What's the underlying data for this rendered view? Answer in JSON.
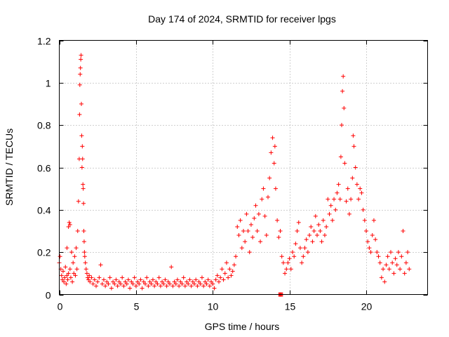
{
  "chart_data": {
    "type": "scatter",
    "title": "Day 174 of 2024, SRMTID for receiver lpgs",
    "xlabel": "GPS time / hours",
    "ylabel": "SRMTID / TECUs",
    "xlim": [
      0,
      24
    ],
    "ylim": [
      0,
      1.2
    ],
    "xticks": [
      0,
      5,
      10,
      15,
      20
    ],
    "xtick_labels": [
      "0",
      "5",
      "10",
      "15",
      "20"
    ],
    "yticks": [
      0,
      0.2,
      0.4,
      0.6,
      0.8,
      1.0,
      1.2
    ],
    "ytick_labels": [
      "0",
      "0.2",
      "0.4",
      "0.6",
      "0.8",
      "1",
      "1.2"
    ],
    "grid": true,
    "marker": "plus",
    "color": "#ff0000",
    "series": [
      {
        "name": "SRMTID",
        "points": [
          [
            0.0,
            0.15
          ],
          [
            0.05,
            0.18
          ],
          [
            0.1,
            0.12
          ],
          [
            0.15,
            0.09
          ],
          [
            0.2,
            0.07
          ],
          [
            0.25,
            0.11
          ],
          [
            0.3,
            0.06
          ],
          [
            0.35,
            0.08
          ],
          [
            0.4,
            0.13
          ],
          [
            0.45,
            0.05
          ],
          [
            0.5,
            0.09
          ],
          [
            0.5,
            0.22
          ],
          [
            0.55,
            0.07
          ],
          [
            0.6,
            0.1
          ],
          [
            0.6,
            0.32
          ],
          [
            0.65,
            0.34
          ],
          [
            0.7,
            0.33
          ],
          [
            0.7,
            0.12
          ],
          [
            0.75,
            0.08
          ],
          [
            0.8,
            0.2
          ],
          [
            0.85,
            0.06
          ],
          [
            0.9,
            0.15
          ],
          [
            0.95,
            0.1
          ],
          [
            1.0,
            0.18
          ],
          [
            1.05,
            0.09
          ],
          [
            1.1,
            0.22
          ],
          [
            1.15,
            0.12
          ],
          [
            1.2,
            0.3
          ],
          [
            1.25,
            0.44
          ],
          [
            1.3,
            0.64
          ],
          [
            1.32,
            0.85
          ],
          [
            1.34,
            0.99
          ],
          [
            1.36,
            1.04
          ],
          [
            1.38,
            1.07
          ],
          [
            1.4,
            1.11
          ],
          [
            1.42,
            1.13
          ],
          [
            1.44,
            0.9
          ],
          [
            1.46,
            0.75
          ],
          [
            1.48,
            0.6
          ],
          [
            1.5,
            0.7
          ],
          [
            1.52,
            0.64
          ],
          [
            1.54,
            0.52
          ],
          [
            1.56,
            0.5
          ],
          [
            1.58,
            0.43
          ],
          [
            1.6,
            0.3
          ],
          [
            1.62,
            0.25
          ],
          [
            1.64,
            0.2
          ],
          [
            1.66,
            0.18
          ],
          [
            1.7,
            0.15
          ],
          [
            1.75,
            0.12
          ],
          [
            1.8,
            0.1
          ],
          [
            1.85,
            0.08
          ],
          [
            1.9,
            0.07
          ],
          [
            1.95,
            0.09
          ],
          [
            2.0,
            0.06
          ],
          [
            2.1,
            0.08
          ],
          [
            2.2,
            0.05
          ],
          [
            2.3,
            0.07
          ],
          [
            2.4,
            0.04
          ],
          [
            2.5,
            0.06
          ],
          [
            2.6,
            0.08
          ],
          [
            2.7,
            0.14
          ],
          [
            2.8,
            0.05
          ],
          [
            2.9,
            0.07
          ],
          [
            3.0,
            0.04
          ],
          [
            3.1,
            0.06
          ],
          [
            3.2,
            0.05
          ],
          [
            3.3,
            0.08
          ],
          [
            3.4,
            0.03
          ],
          [
            3.5,
            0.06
          ],
          [
            3.6,
            0.05
          ],
          [
            3.7,
            0.07
          ],
          [
            3.8,
            0.04
          ],
          [
            3.9,
            0.06
          ],
          [
            4.0,
            0.05
          ],
          [
            4.1,
            0.08
          ],
          [
            4.2,
            0.04
          ],
          [
            4.3,
            0.06
          ],
          [
            4.4,
            0.05
          ],
          [
            4.5,
            0.07
          ],
          [
            4.6,
            0.03
          ],
          [
            4.7,
            0.06
          ],
          [
            4.8,
            0.05
          ],
          [
            4.9,
            0.08
          ],
          [
            5.0,
            0.04
          ],
          [
            5.1,
            0.06
          ],
          [
            5.2,
            0.05
          ],
          [
            5.3,
            0.07
          ],
          [
            5.4,
            0.03
          ],
          [
            5.5,
            0.06
          ],
          [
            5.6,
            0.05
          ],
          [
            5.7,
            0.08
          ],
          [
            5.8,
            0.04
          ],
          [
            5.9,
            0.06
          ],
          [
            6.0,
            0.05
          ],
          [
            6.1,
            0.07
          ],
          [
            6.2,
            0.04
          ],
          [
            6.3,
            0.06
          ],
          [
            6.4,
            0.05
          ],
          [
            6.5,
            0.08
          ],
          [
            6.6,
            0.04
          ],
          [
            6.7,
            0.06
          ],
          [
            6.8,
            0.05
          ],
          [
            6.9,
            0.07
          ],
          [
            7.0,
            0.04
          ],
          [
            7.1,
            0.06
          ],
          [
            7.2,
            0.05
          ],
          [
            7.3,
            0.13
          ],
          [
            7.4,
            0.04
          ],
          [
            7.5,
            0.06
          ],
          [
            7.6,
            0.05
          ],
          [
            7.7,
            0.07
          ],
          [
            7.8,
            0.04
          ],
          [
            7.9,
            0.06
          ],
          [
            8.0,
            0.05
          ],
          [
            8.1,
            0.08
          ],
          [
            8.2,
            0.04
          ],
          [
            8.3,
            0.06
          ],
          [
            8.4,
            0.05
          ],
          [
            8.5,
            0.07
          ],
          [
            8.6,
            0.04
          ],
          [
            8.7,
            0.06
          ],
          [
            8.8,
            0.05
          ],
          [
            8.9,
            0.07
          ],
          [
            9.0,
            0.04
          ],
          [
            9.1,
            0.06
          ],
          [
            9.2,
            0.05
          ],
          [
            9.3,
            0.08
          ],
          [
            9.4,
            0.04
          ],
          [
            9.5,
            0.06
          ],
          [
            9.6,
            0.05
          ],
          [
            9.7,
            0.07
          ],
          [
            9.8,
            0.04
          ],
          [
            9.9,
            0.06
          ],
          [
            10.0,
            0.05
          ],
          [
            10.1,
            0.03
          ],
          [
            10.2,
            0.07
          ],
          [
            10.3,
            0.09
          ],
          [
            10.4,
            0.06
          ],
          [
            10.5,
            0.08
          ],
          [
            10.6,
            0.12
          ],
          [
            10.7,
            0.07
          ],
          [
            10.8,
            0.1
          ],
          [
            10.9,
            0.15
          ],
          [
            11.0,
            0.08
          ],
          [
            11.1,
            0.12
          ],
          [
            11.2,
            0.09
          ],
          [
            11.3,
            0.11
          ],
          [
            11.4,
            0.14
          ],
          [
            11.5,
            0.18
          ],
          [
            11.6,
            0.32
          ],
          [
            11.7,
            0.28
          ],
          [
            11.8,
            0.35
          ],
          [
            11.9,
            0.22
          ],
          [
            12.0,
            0.3
          ],
          [
            12.1,
            0.25
          ],
          [
            12.2,
            0.38
          ],
          [
            12.3,
            0.3
          ],
          [
            12.4,
            0.2
          ],
          [
            12.5,
            0.33
          ],
          [
            12.6,
            0.27
          ],
          [
            12.7,
            0.36
          ],
          [
            12.8,
            0.42
          ],
          [
            12.9,
            0.3
          ],
          [
            13.0,
            0.38
          ],
          [
            13.1,
            0.25
          ],
          [
            13.2,
            0.45
          ],
          [
            13.3,
            0.5
          ],
          [
            13.4,
            0.37
          ],
          [
            13.5,
            0.28
          ],
          [
            13.6,
            0.46
          ],
          [
            13.7,
            0.55
          ],
          [
            13.8,
            0.67
          ],
          [
            13.9,
            0.74
          ],
          [
            14.0,
            0.62
          ],
          [
            14.05,
            0.7
          ],
          [
            14.1,
            0.5
          ],
          [
            14.2,
            0.35
          ],
          [
            14.3,
            0.27
          ],
          [
            14.4,
            0.3
          ],
          [
            14.5,
            0.18
          ],
          [
            14.6,
            0.15
          ],
          [
            14.7,
            0.1
          ],
          [
            14.8,
            0.12
          ],
          [
            14.9,
            0.15
          ],
          [
            15.0,
            0.17
          ],
          [
            15.1,
            0.12
          ],
          [
            15.2,
            0.2
          ],
          [
            15.3,
            0.18
          ],
          [
            15.4,
            0.24
          ],
          [
            15.5,
            0.3
          ],
          [
            15.6,
            0.34
          ],
          [
            15.7,
            0.22
          ],
          [
            15.8,
            0.15
          ],
          [
            15.9,
            0.18
          ],
          [
            16.0,
            0.22
          ],
          [
            16.1,
            0.26
          ],
          [
            16.2,
            0.2
          ],
          [
            16.3,
            0.28
          ],
          [
            16.4,
            0.32
          ],
          [
            16.5,
            0.25
          ],
          [
            16.6,
            0.3
          ],
          [
            16.7,
            0.37
          ],
          [
            16.8,
            0.28
          ],
          [
            16.9,
            0.33
          ],
          [
            17.0,
            0.3
          ],
          [
            17.1,
            0.25
          ],
          [
            17.2,
            0.35
          ],
          [
            17.3,
            0.28
          ],
          [
            17.4,
            0.32
          ],
          [
            17.5,
            0.45
          ],
          [
            17.6,
            0.38
          ],
          [
            17.7,
            0.42
          ],
          [
            17.8,
            0.35
          ],
          [
            17.9,
            0.45
          ],
          [
            18.0,
            0.4
          ],
          [
            18.1,
            0.48
          ],
          [
            18.2,
            0.52
          ],
          [
            18.3,
            0.45
          ],
          [
            18.35,
            0.65
          ],
          [
            18.4,
            0.8
          ],
          [
            18.45,
            0.96
          ],
          [
            18.5,
            1.03
          ],
          [
            18.55,
            0.88
          ],
          [
            18.6,
            0.62
          ],
          [
            18.7,
            0.44
          ],
          [
            18.8,
            0.5
          ],
          [
            18.9,
            0.38
          ],
          [
            19.0,
            0.45
          ],
          [
            19.1,
            0.55
          ],
          [
            19.15,
            0.75
          ],
          [
            19.2,
            0.7
          ],
          [
            19.3,
            0.6
          ],
          [
            19.4,
            0.52
          ],
          [
            19.5,
            0.45
          ],
          [
            19.6,
            0.5
          ],
          [
            19.7,
            0.48
          ],
          [
            19.8,
            0.4
          ],
          [
            19.9,
            0.35
          ],
          [
            20.0,
            0.3
          ],
          [
            20.1,
            0.25
          ],
          [
            20.2,
            0.22
          ],
          [
            20.3,
            0.2
          ],
          [
            20.4,
            0.28
          ],
          [
            20.5,
            0.35
          ],
          [
            20.6,
            0.26
          ],
          [
            20.7,
            0.2
          ],
          [
            20.8,
            0.18
          ],
          [
            20.9,
            0.15
          ],
          [
            21.0,
            0.08
          ],
          [
            21.1,
            0.12
          ],
          [
            21.2,
            0.06
          ],
          [
            21.3,
            0.14
          ],
          [
            21.4,
            0.18
          ],
          [
            21.5,
            0.12
          ],
          [
            21.6,
            0.2
          ],
          [
            21.7,
            0.15
          ],
          [
            21.8,
            0.1
          ],
          [
            21.9,
            0.17
          ],
          [
            22.0,
            0.14
          ],
          [
            22.1,
            0.2
          ],
          [
            22.2,
            0.12
          ],
          [
            22.3,
            0.18
          ],
          [
            22.4,
            0.3
          ],
          [
            22.5,
            0.1
          ],
          [
            22.6,
            0.15
          ],
          [
            22.7,
            0.2
          ],
          [
            22.8,
            0.12
          ],
          [
            14.3,
            0.0
          ],
          [
            14.35,
            0.0
          ],
          [
            14.4,
            0.0
          ],
          [
            14.45,
            0.0
          ],
          [
            14.5,
            0.0
          ],
          [
            14.55,
            0.0
          ]
        ]
      }
    ]
  }
}
